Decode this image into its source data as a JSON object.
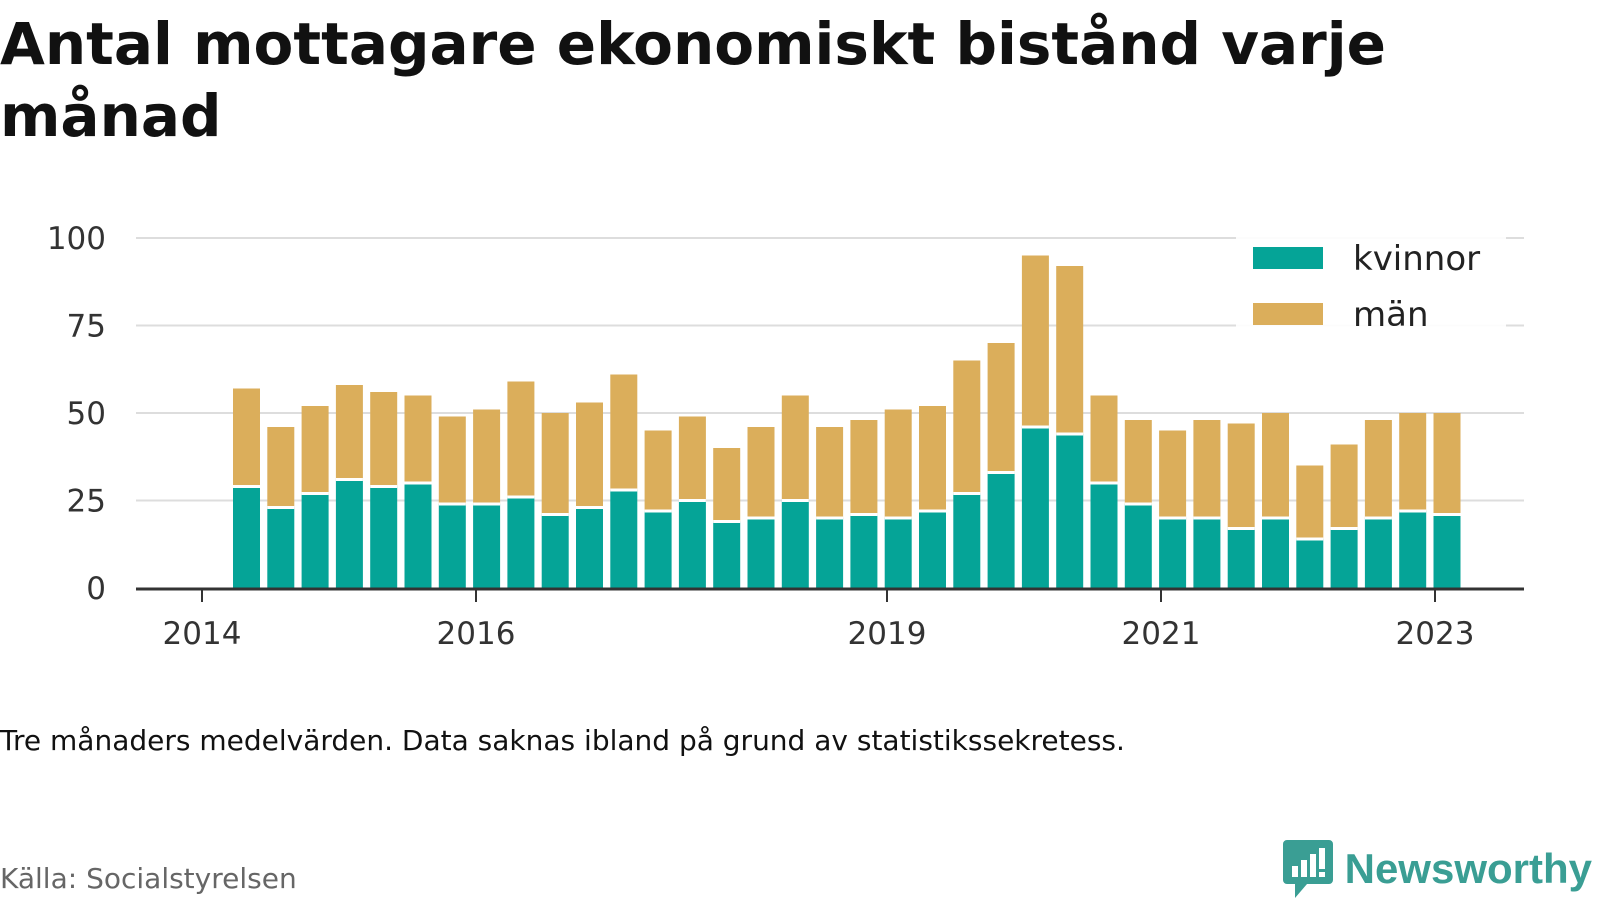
{
  "title": "Antal mottagare ekonomiskt bistånd varje månad",
  "note": "Tre månaders medelvärden. Data saknas ibland på grund av statistikssekretess.",
  "source": "Källa: Socialstyrelsen",
  "brand": {
    "name": "Newsworthy",
    "color": "#3a9e94",
    "icon": "newsworthy-chart-bubble-icon"
  },
  "chart_data": {
    "type": "bar",
    "stacked": true,
    "x_ticks": [
      "2014",
      "2016",
      "2019",
      "2021",
      "2023"
    ],
    "y_ticks": [
      0,
      25,
      50,
      75,
      100
    ],
    "ylim": [
      0,
      100
    ],
    "grid": true,
    "legend_position": "top-right",
    "series": [
      {
        "name": "kvinnor",
        "color": "#05a497",
        "values": [
          29,
          23,
          27,
          31,
          29,
          30,
          24,
          24,
          26,
          21,
          23,
          28,
          22,
          25,
          19,
          20,
          25,
          20,
          21,
          20,
          22,
          27,
          33,
          46,
          44,
          30,
          24,
          20,
          20,
          17,
          20,
          14,
          17,
          20,
          22,
          21
        ]
      },
      {
        "name": "män",
        "color": "#dbae5b",
        "values": [
          28,
          23,
          25,
          27,
          27,
          25,
          25,
          27,
          33,
          29,
          30,
          33,
          23,
          24,
          21,
          26,
          30,
          26,
          27,
          31,
          30,
          38,
          37,
          49,
          48,
          25,
          24,
          25,
          28,
          30,
          30,
          21,
          24,
          28,
          28,
          29
        ]
      }
    ]
  }
}
